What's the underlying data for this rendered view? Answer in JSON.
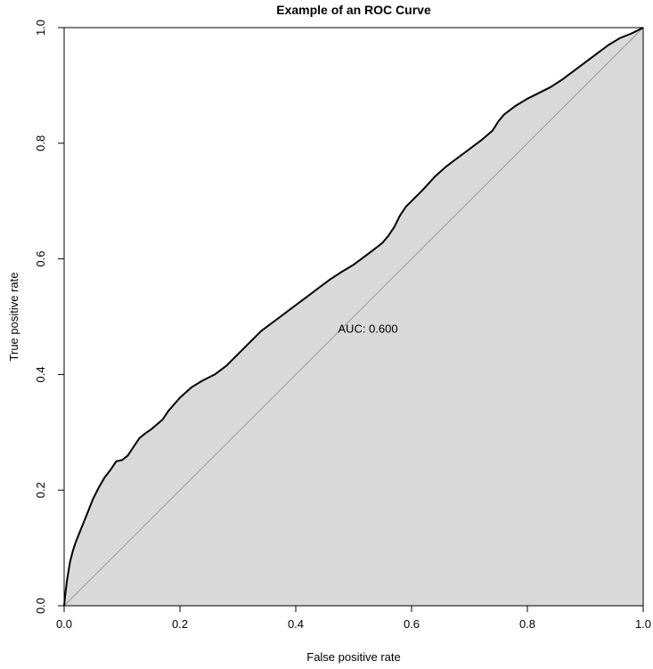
{
  "chart_data": {
    "type": "line",
    "title": "Example of an ROC Curve",
    "xlabel": "False positive rate",
    "ylabel": "True positive rate",
    "xlim": [
      0,
      1
    ],
    "ylim": [
      0,
      1
    ],
    "x_ticks": [
      "0.0",
      "0.2",
      "0.4",
      "0.6",
      "0.8",
      "1.0"
    ],
    "y_ticks": [
      "0.0",
      "0.2",
      "0.4",
      "0.6",
      "0.8",
      "1.0"
    ],
    "annotation": {
      "text": "AUC: 0.600",
      "x": 0.5,
      "y": 0.48
    },
    "grid": false,
    "area_fill": "#d9d9d9",
    "curve_color": "#000000",
    "diagonal_color": "#999999",
    "series": [
      {
        "x": [
          0.0,
          0.002,
          0.005,
          0.01,
          0.015,
          0.02,
          0.03,
          0.04,
          0.05,
          0.06,
          0.07,
          0.08,
          0.09,
          0.1,
          0.11,
          0.12,
          0.13,
          0.14,
          0.15,
          0.17,
          0.18,
          0.2,
          0.22,
          0.24,
          0.26,
          0.28,
          0.3,
          0.32,
          0.34,
          0.36,
          0.38,
          0.4,
          0.42,
          0.44,
          0.46,
          0.48,
          0.5,
          0.52,
          0.54,
          0.55,
          0.56,
          0.57,
          0.58,
          0.59,
          0.6,
          0.62,
          0.64,
          0.66,
          0.68,
          0.7,
          0.72,
          0.74,
          0.75,
          0.76,
          0.78,
          0.8,
          0.82,
          0.84,
          0.86,
          0.88,
          0.9,
          0.92,
          0.94,
          0.96,
          0.98,
          1.0
        ],
        "y": [
          0.0,
          0.02,
          0.045,
          0.075,
          0.095,
          0.11,
          0.135,
          0.16,
          0.185,
          0.205,
          0.222,
          0.235,
          0.25,
          0.252,
          0.26,
          0.275,
          0.29,
          0.298,
          0.305,
          0.322,
          0.337,
          0.36,
          0.378,
          0.39,
          0.4,
          0.415,
          0.435,
          0.455,
          0.475,
          0.49,
          0.505,
          0.52,
          0.535,
          0.55,
          0.565,
          0.578,
          0.59,
          0.605,
          0.62,
          0.628,
          0.64,
          0.655,
          0.675,
          0.69,
          0.7,
          0.72,
          0.742,
          0.76,
          0.775,
          0.79,
          0.805,
          0.822,
          0.838,
          0.85,
          0.865,
          0.877,
          0.887,
          0.897,
          0.91,
          0.925,
          0.94,
          0.955,
          0.97,
          0.982,
          0.99,
          1.0
        ]
      }
    ]
  }
}
